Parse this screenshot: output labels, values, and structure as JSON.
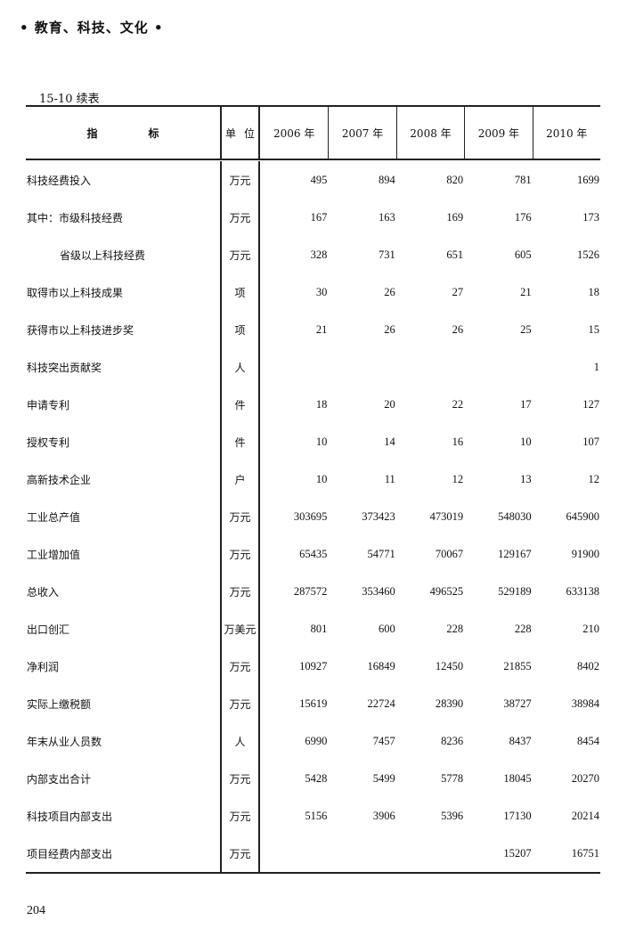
{
  "running_header": "•  教育、科技、文化  •",
  "table_caption": "15-10  续表",
  "header": {
    "indicator": [
      "指",
      "标"
    ],
    "unit": [
      "单",
      "位"
    ],
    "years": [
      "2006 年",
      "2007 年",
      "2008 年",
      "2009 年",
      "2010 年"
    ]
  },
  "rows": [
    {
      "label": "科技经费投入",
      "unit": "万元",
      "values": [
        "495",
        "894",
        "820",
        "781",
        "1699"
      ]
    },
    {
      "label": "其中：市级科技经费",
      "unit": "万元",
      "values": [
        "167",
        "163",
        "169",
        "176",
        "173"
      ]
    },
    {
      "label": "省级以上科技经费",
      "unit": "万元",
      "values": [
        "328",
        "731",
        "651",
        "605",
        "1526"
      ],
      "indent": true
    },
    {
      "label": "取得市以上科技成果",
      "unit": "项",
      "values": [
        "30",
        "26",
        "27",
        "21",
        "18"
      ]
    },
    {
      "label": "获得市以上科技进步奖",
      "unit": "项",
      "values": [
        "21",
        "26",
        "26",
        "25",
        "15"
      ]
    },
    {
      "label": "科技突出贡献奖",
      "unit": "人",
      "values": [
        "",
        "",
        "",
        "",
        "1"
      ]
    },
    {
      "label": "申请专利",
      "unit": "件",
      "values": [
        "18",
        "20",
        "22",
        "17",
        "127"
      ]
    },
    {
      "label": "授权专利",
      "unit": "件",
      "values": [
        "10",
        "14",
        "16",
        "10",
        "107"
      ]
    },
    {
      "label": "高新技术企业",
      "unit": "户",
      "values": [
        "10",
        "11",
        "12",
        "13",
        "12"
      ]
    },
    {
      "label": "工业总产值",
      "unit": "万元",
      "values": [
        "303695",
        "373423",
        "473019",
        "548030",
        "645900"
      ]
    },
    {
      "label": "工业增加值",
      "unit": "万元",
      "values": [
        "65435",
        "54771",
        "70067",
        "129167",
        "91900"
      ]
    },
    {
      "label": "总收入",
      "unit": "万元",
      "values": [
        "287572",
        "353460",
        "496525",
        "529189",
        "633138"
      ]
    },
    {
      "label": "出口创汇",
      "unit": "万美元",
      "values": [
        "801",
        "600",
        "228",
        "228",
        "210"
      ]
    },
    {
      "label": "净利润",
      "unit": "万元",
      "values": [
        "10927",
        "16849",
        "12450",
        "21855",
        "8402"
      ]
    },
    {
      "label": "实际上缴税额",
      "unit": "万元",
      "values": [
        "15619",
        "22724",
        "28390",
        "38727",
        "38984"
      ]
    },
    {
      "label": "年末从业人员数",
      "unit": "人",
      "values": [
        "6990",
        "7457",
        "8236",
        "8437",
        "8454"
      ]
    },
    {
      "label": "内部支出合计",
      "unit": "万元",
      "values": [
        "5428",
        "5499",
        "5778",
        "18045",
        "20270"
      ]
    },
    {
      "label": "科技项目内部支出",
      "unit": "万元",
      "values": [
        "5156",
        "3906",
        "5396",
        "17130",
        "20214"
      ]
    },
    {
      "label": "项目经费内部支出",
      "unit": "万元",
      "values": [
        "",
        "",
        "",
        "15207",
        "16751"
      ]
    }
  ],
  "page_number": "204"
}
